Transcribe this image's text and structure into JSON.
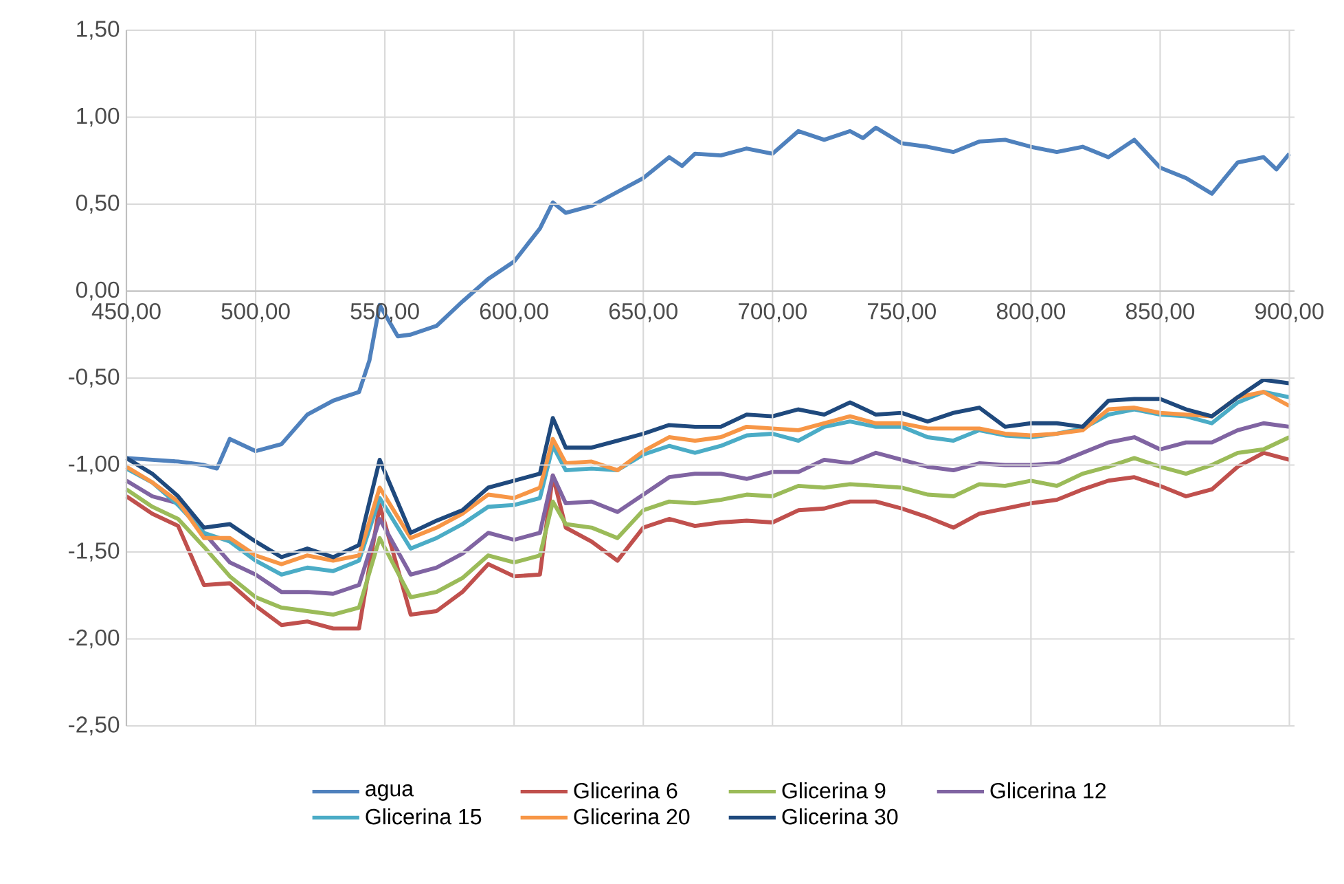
{
  "chart_data": {
    "type": "line",
    "xlim": [
      450,
      902
    ],
    "ylim": [
      -2.5,
      1.5
    ],
    "xticks": [
      {
        "value": 450,
        "label": "450,00"
      },
      {
        "value": 500,
        "label": "500,00"
      },
      {
        "value": 550,
        "label": "550,00"
      },
      {
        "value": 600,
        "label": "600,00"
      },
      {
        "value": 650,
        "label": "650,00"
      },
      {
        "value": 700,
        "label": "700,00"
      },
      {
        "value": 750,
        "label": "750,00"
      },
      {
        "value": 800,
        "label": "800,00"
      },
      {
        "value": 850,
        "label": "850,00"
      },
      {
        "value": 900,
        "label": "900,00"
      }
    ],
    "yticks": [
      {
        "value": -2.5,
        "label": "-2,50"
      },
      {
        "value": -2,
        "label": "-2,00"
      },
      {
        "value": -1.5,
        "label": "-1,50"
      },
      {
        "value": -1,
        "label": "-1,00"
      },
      {
        "value": -0.5,
        "label": "-0,50"
      },
      {
        "value": 0,
        "label": "0,00"
      },
      {
        "value": 0.5,
        "label": "0,50"
      },
      {
        "value": 1,
        "label": "1,00"
      },
      {
        "value": 1.5,
        "label": "1,50"
      }
    ],
    "grid": true,
    "legend": "bottom",
    "series": [
      {
        "name": "agua",
        "color": "#4f81bd",
        "x": [
          450,
          460,
          470,
          480,
          485,
          490,
          500,
          510,
          520,
          530,
          540,
          544,
          548,
          555,
          560,
          570,
          580,
          590,
          600,
          610,
          615,
          620,
          630,
          640,
          650,
          660,
          665,
          670,
          680,
          690,
          700,
          710,
          720,
          730,
          735,
          740,
          750,
          760,
          770,
          780,
          790,
          800,
          810,
          820,
          830,
          840,
          850,
          860,
          870,
          880,
          890,
          895,
          900
        ],
        "values": [
          -0.96,
          -0.97,
          -0.98,
          -1.0,
          -1.02,
          -0.85,
          -0.92,
          -0.88,
          -0.71,
          -0.63,
          -0.58,
          -0.4,
          -0.08,
          -0.26,
          -0.25,
          -0.2,
          -0.06,
          0.07,
          0.17,
          0.36,
          0.51,
          0.45,
          0.49,
          0.57,
          0.65,
          0.77,
          0.72,
          0.79,
          0.78,
          0.82,
          0.79,
          0.92,
          0.87,
          0.92,
          0.88,
          0.94,
          0.85,
          0.83,
          0.8,
          0.86,
          0.87,
          0.83,
          0.8,
          0.83,
          0.77,
          0.87,
          0.71,
          0.65,
          0.56,
          0.74,
          0.77,
          0.7,
          0.79
        ]
      },
      {
        "name": "Glicerina 6",
        "color": "#c0504d",
        "x": [
          450,
          460,
          470,
          480,
          490,
          500,
          510,
          520,
          530,
          540,
          548,
          560,
          570,
          580,
          590,
          600,
          610,
          615,
          620,
          630,
          640,
          650,
          660,
          670,
          680,
          690,
          700,
          710,
          720,
          730,
          740,
          750,
          760,
          770,
          780,
          790,
          800,
          810,
          820,
          830,
          840,
          850,
          860,
          870,
          880,
          890,
          900
        ],
        "values": [
          -1.18,
          -1.28,
          -1.35,
          -1.69,
          -1.68,
          -1.81,
          -1.92,
          -1.9,
          -1.94,
          -1.94,
          -1.23,
          -1.86,
          -1.84,
          -1.73,
          -1.57,
          -1.64,
          -1.63,
          -1.06,
          -1.36,
          -1.44,
          -1.55,
          -1.36,
          -1.31,
          -1.35,
          -1.33,
          -1.32,
          -1.33,
          -1.26,
          -1.25,
          -1.21,
          -1.21,
          -1.25,
          -1.3,
          -1.36,
          -1.28,
          -1.25,
          -1.22,
          -1.2,
          -1.14,
          -1.09,
          -1.07,
          -1.12,
          -1.18,
          -1.14,
          -1.01,
          -0.93,
          -0.97
        ]
      },
      {
        "name": "Glicerina 9",
        "color": "#9bbb59",
        "x": [
          450,
          460,
          470,
          480,
          490,
          500,
          510,
          520,
          530,
          540,
          548,
          560,
          570,
          580,
          590,
          600,
          610,
          615,
          620,
          630,
          640,
          650,
          660,
          670,
          680,
          690,
          700,
          710,
          720,
          730,
          740,
          750,
          760,
          770,
          780,
          790,
          800,
          810,
          820,
          830,
          840,
          850,
          860,
          870,
          880,
          890,
          900
        ],
        "values": [
          -1.14,
          -1.24,
          -1.31,
          -1.47,
          -1.64,
          -1.76,
          -1.82,
          -1.84,
          -1.86,
          -1.82,
          -1.42,
          -1.76,
          -1.73,
          -1.65,
          -1.52,
          -1.56,
          -1.52,
          -1.21,
          -1.34,
          -1.36,
          -1.42,
          -1.26,
          -1.21,
          -1.22,
          -1.2,
          -1.17,
          -1.18,
          -1.12,
          -1.13,
          -1.11,
          -1.12,
          -1.13,
          -1.17,
          -1.18,
          -1.11,
          -1.12,
          -1.09,
          -1.12,
          -1.05,
          -1.01,
          -0.96,
          -1.01,
          -1.05,
          -1.0,
          -0.93,
          -0.91,
          -0.84
        ]
      },
      {
        "name": "Glicerina 12",
        "color": "#8064a2",
        "x": [
          450,
          460,
          470,
          480,
          490,
          500,
          510,
          520,
          530,
          540,
          548,
          560,
          570,
          580,
          590,
          600,
          610,
          615,
          620,
          630,
          640,
          650,
          660,
          670,
          680,
          690,
          700,
          710,
          720,
          730,
          740,
          750,
          760,
          770,
          780,
          790,
          800,
          810,
          820,
          830,
          840,
          850,
          860,
          870,
          880,
          890,
          900
        ],
        "values": [
          -1.09,
          -1.18,
          -1.22,
          -1.39,
          -1.56,
          -1.63,
          -1.73,
          -1.73,
          -1.74,
          -1.69,
          -1.31,
          -1.63,
          -1.59,
          -1.51,
          -1.39,
          -1.43,
          -1.39,
          -1.06,
          -1.22,
          -1.21,
          -1.27,
          -1.17,
          -1.07,
          -1.05,
          -1.05,
          -1.08,
          -1.04,
          -1.04,
          -0.97,
          -0.99,
          -0.93,
          -0.97,
          -1.01,
          -1.03,
          -0.99,
          -1.0,
          -1.0,
          -0.99,
          -0.93,
          -0.87,
          -0.84,
          -0.91,
          -0.87,
          -0.87,
          -0.8,
          -0.76,
          -0.78
        ]
      },
      {
        "name": "Glicerina 15",
        "color": "#4bacc6",
        "x": [
          450,
          460,
          470,
          480,
          490,
          500,
          510,
          520,
          530,
          540,
          548,
          560,
          570,
          580,
          590,
          600,
          610,
          615,
          620,
          630,
          640,
          650,
          660,
          670,
          680,
          690,
          700,
          710,
          720,
          730,
          740,
          750,
          760,
          770,
          780,
          790,
          800,
          810,
          820,
          830,
          840,
          850,
          860,
          870,
          880,
          890,
          900
        ],
        "values": [
          -1.02,
          -1.1,
          -1.23,
          -1.39,
          -1.44,
          -1.55,
          -1.63,
          -1.59,
          -1.61,
          -1.55,
          -1.19,
          -1.48,
          -1.42,
          -1.34,
          -1.24,
          -1.23,
          -1.19,
          -0.89,
          -1.03,
          -1.02,
          -1.03,
          -0.94,
          -0.89,
          -0.93,
          -0.89,
          -0.83,
          -0.82,
          -0.86,
          -0.78,
          -0.75,
          -0.78,
          -0.78,
          -0.84,
          -0.86,
          -0.8,
          -0.83,
          -0.84,
          -0.82,
          -0.79,
          -0.71,
          -0.68,
          -0.71,
          -0.72,
          -0.76,
          -0.64,
          -0.58,
          -0.61
        ]
      },
      {
        "name": "Glicerina 20",
        "color": "#f79646",
        "x": [
          450,
          460,
          470,
          480,
          490,
          500,
          510,
          520,
          530,
          540,
          548,
          560,
          570,
          580,
          590,
          600,
          610,
          615,
          620,
          630,
          640,
          650,
          660,
          670,
          680,
          690,
          700,
          710,
          720,
          730,
          740,
          750,
          760,
          770,
          780,
          790,
          800,
          810,
          820,
          830,
          840,
          850,
          860,
          870,
          880,
          890,
          900
        ],
        "values": [
          -1.01,
          -1.1,
          -1.21,
          -1.42,
          -1.42,
          -1.52,
          -1.57,
          -1.52,
          -1.55,
          -1.52,
          -1.13,
          -1.42,
          -1.36,
          -1.28,
          -1.17,
          -1.19,
          -1.13,
          -0.85,
          -0.99,
          -0.98,
          -1.03,
          -0.92,
          -0.84,
          -0.86,
          -0.84,
          -0.78,
          -0.79,
          -0.8,
          -0.76,
          -0.72,
          -0.76,
          -0.76,
          -0.79,
          -0.79,
          -0.79,
          -0.82,
          -0.83,
          -0.82,
          -0.8,
          -0.68,
          -0.67,
          -0.7,
          -0.71,
          -0.72,
          -0.61,
          -0.58,
          -0.66
        ]
      },
      {
        "name": "Glicerina 30",
        "color": "#1f497d",
        "x": [
          450,
          460,
          470,
          480,
          490,
          500,
          510,
          520,
          530,
          540,
          548,
          560,
          570,
          580,
          590,
          600,
          610,
          615,
          620,
          630,
          640,
          650,
          660,
          670,
          680,
          690,
          700,
          710,
          720,
          730,
          740,
          750,
          760,
          770,
          780,
          790,
          800,
          810,
          820,
          830,
          840,
          850,
          860,
          870,
          880,
          890,
          900
        ],
        "values": [
          -0.96,
          -1.05,
          -1.18,
          -1.36,
          -1.34,
          -1.44,
          -1.53,
          -1.48,
          -1.53,
          -1.46,
          -0.97,
          -1.39,
          -1.32,
          -1.26,
          -1.13,
          -1.09,
          -1.05,
          -0.73,
          -0.9,
          -0.9,
          -0.86,
          -0.82,
          -0.77,
          -0.78,
          -0.78,
          -0.71,
          -0.72,
          -0.68,
          -0.71,
          -0.64,
          -0.71,
          -0.7,
          -0.75,
          -0.7,
          -0.67,
          -0.78,
          -0.76,
          -0.76,
          -0.78,
          -0.63,
          -0.62,
          -0.62,
          -0.68,
          -0.72,
          -0.61,
          -0.51,
          -0.53
        ]
      }
    ]
  }
}
